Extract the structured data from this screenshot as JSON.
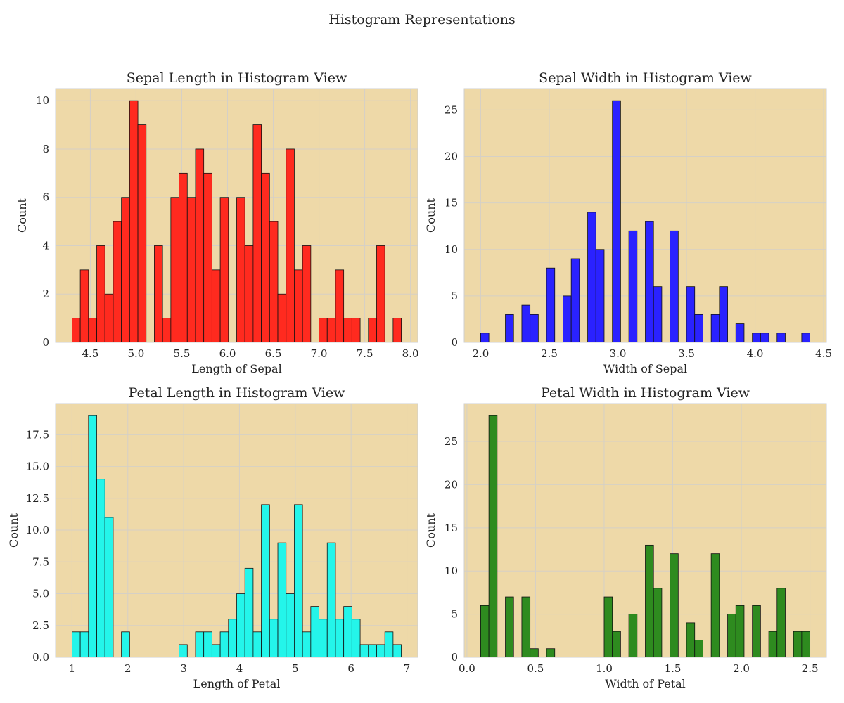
{
  "figure": {
    "title": "Histogram Representations",
    "panel_bg": "#eed9a8",
    "grid_color": "#d5d0c6"
  },
  "chart_data": [
    {
      "type": "bar",
      "title": "Sepal Length in Histogram View",
      "xlabel": "Length of Sepal",
      "ylabel": "Count",
      "color": "#ff2a1f",
      "xlim": [
        4.12,
        8.08
      ],
      "ylim": [
        0,
        10.5
      ],
      "xticks": [
        4.5,
        5.0,
        5.5,
        6.0,
        6.5,
        7.0,
        7.5,
        8.0
      ],
      "xtick_labels": [
        "4.5",
        "5.0",
        "5.5",
        "6.0",
        "6.5",
        "7.0",
        "7.5",
        "8.0"
      ],
      "yticks": [
        0,
        2,
        4,
        6,
        8,
        10
      ],
      "ytick_labels": [
        "0",
        "2",
        "4",
        "6",
        "8",
        "10"
      ],
      "bin_start": 4.3,
      "bin_width": 0.09,
      "counts": [
        1,
        3,
        1,
        4,
        2,
        5,
        6,
        10,
        9,
        0,
        4,
        1,
        6,
        7,
        6,
        8,
        7,
        3,
        6,
        0,
        6,
        4,
        9,
        7,
        5,
        2,
        8,
        3,
        4,
        0,
        1,
        1,
        3,
        1,
        1,
        0,
        1,
        4,
        0,
        1
      ]
    },
    {
      "type": "bar",
      "title": "Sepal Width in Histogram View",
      "xlabel": "Width of Sepal",
      "ylabel": "Count",
      "color": "#2a22ff",
      "xlim": [
        1.88,
        4.52
      ],
      "ylim": [
        0,
        27.3
      ],
      "xticks": [
        2.0,
        2.5,
        3.0,
        3.5,
        4.0,
        4.5
      ],
      "xtick_labels": [
        "2.0",
        "2.5",
        "3.0",
        "3.5",
        "4.0",
        "4.5"
      ],
      "yticks": [
        0,
        5,
        10,
        15,
        20,
        25
      ],
      "ytick_labels": [
        "0",
        "5",
        "10",
        "15",
        "20",
        "25"
      ],
      "bin_start": 2.0,
      "bin_width": 0.06,
      "counts": [
        1,
        0,
        0,
        3,
        0,
        4,
        3,
        0,
        8,
        0,
        5,
        9,
        0,
        14,
        10,
        0,
        26,
        0,
        12,
        0,
        13,
        6,
        0,
        12,
        0,
        6,
        3,
        0,
        3,
        6,
        0,
        2,
        0,
        1,
        1,
        0,
        1,
        0,
        0,
        1
      ]
    },
    {
      "type": "bar",
      "title": "Petal Length in Histogram View",
      "xlabel": "Length of Petal",
      "ylabel": "Count",
      "color": "#24f5ea",
      "xlim": [
        0.705,
        7.195
      ],
      "ylim": [
        0,
        19.95
      ],
      "xticks": [
        1,
        2,
        3,
        4,
        5,
        6,
        7
      ],
      "xtick_labels": [
        "1",
        "2",
        "3",
        "4",
        "5",
        "6",
        "7"
      ],
      "yticks": [
        0,
        2.5,
        5,
        7.5,
        10,
        12.5,
        15,
        17.5
      ],
      "ytick_labels": [
        "0.0",
        "2.5",
        "5.0",
        "7.5",
        "10.0",
        "12.5",
        "15.0",
        "17.5"
      ],
      "bin_start": 1.0,
      "bin_width": 0.1475,
      "counts": [
        2,
        2,
        19,
        14,
        11,
        0,
        2,
        0,
        0,
        0,
        0,
        0,
        0,
        1,
        0,
        2,
        2,
        1,
        2,
        3,
        5,
        7,
        2,
        12,
        3,
        9,
        5,
        12,
        2,
        4,
        3,
        9,
        3,
        4,
        3,
        1,
        1,
        1,
        2,
        1
      ]
    },
    {
      "type": "bar",
      "title": "Petal Width in Histogram View",
      "xlabel": "Width of Petal",
      "ylabel": "Count",
      "color": "#2e8b1f",
      "xlim": [
        -0.02,
        2.62
      ],
      "ylim": [
        0,
        29.4
      ],
      "xticks": [
        0.0,
        0.5,
        1.0,
        1.5,
        2.0,
        2.5
      ],
      "xtick_labels": [
        "0.0",
        "0.5",
        "1.0",
        "1.5",
        "2.0",
        "2.5"
      ],
      "yticks": [
        0,
        5,
        10,
        15,
        20,
        25
      ],
      "ytick_labels": [
        "0",
        "5",
        "10",
        "15",
        "20",
        "25"
      ],
      "bin_start": 0.1,
      "bin_width": 0.06,
      "counts": [
        6,
        28,
        0,
        7,
        0,
        7,
        1,
        0,
        1,
        0,
        0,
        0,
        0,
        0,
        0,
        7,
        3,
        0,
        5,
        0,
        13,
        8,
        0,
        12,
        0,
        4,
        2,
        0,
        12,
        0,
        5,
        6,
        0,
        6,
        0,
        3,
        8,
        0,
        3,
        3
      ]
    }
  ]
}
